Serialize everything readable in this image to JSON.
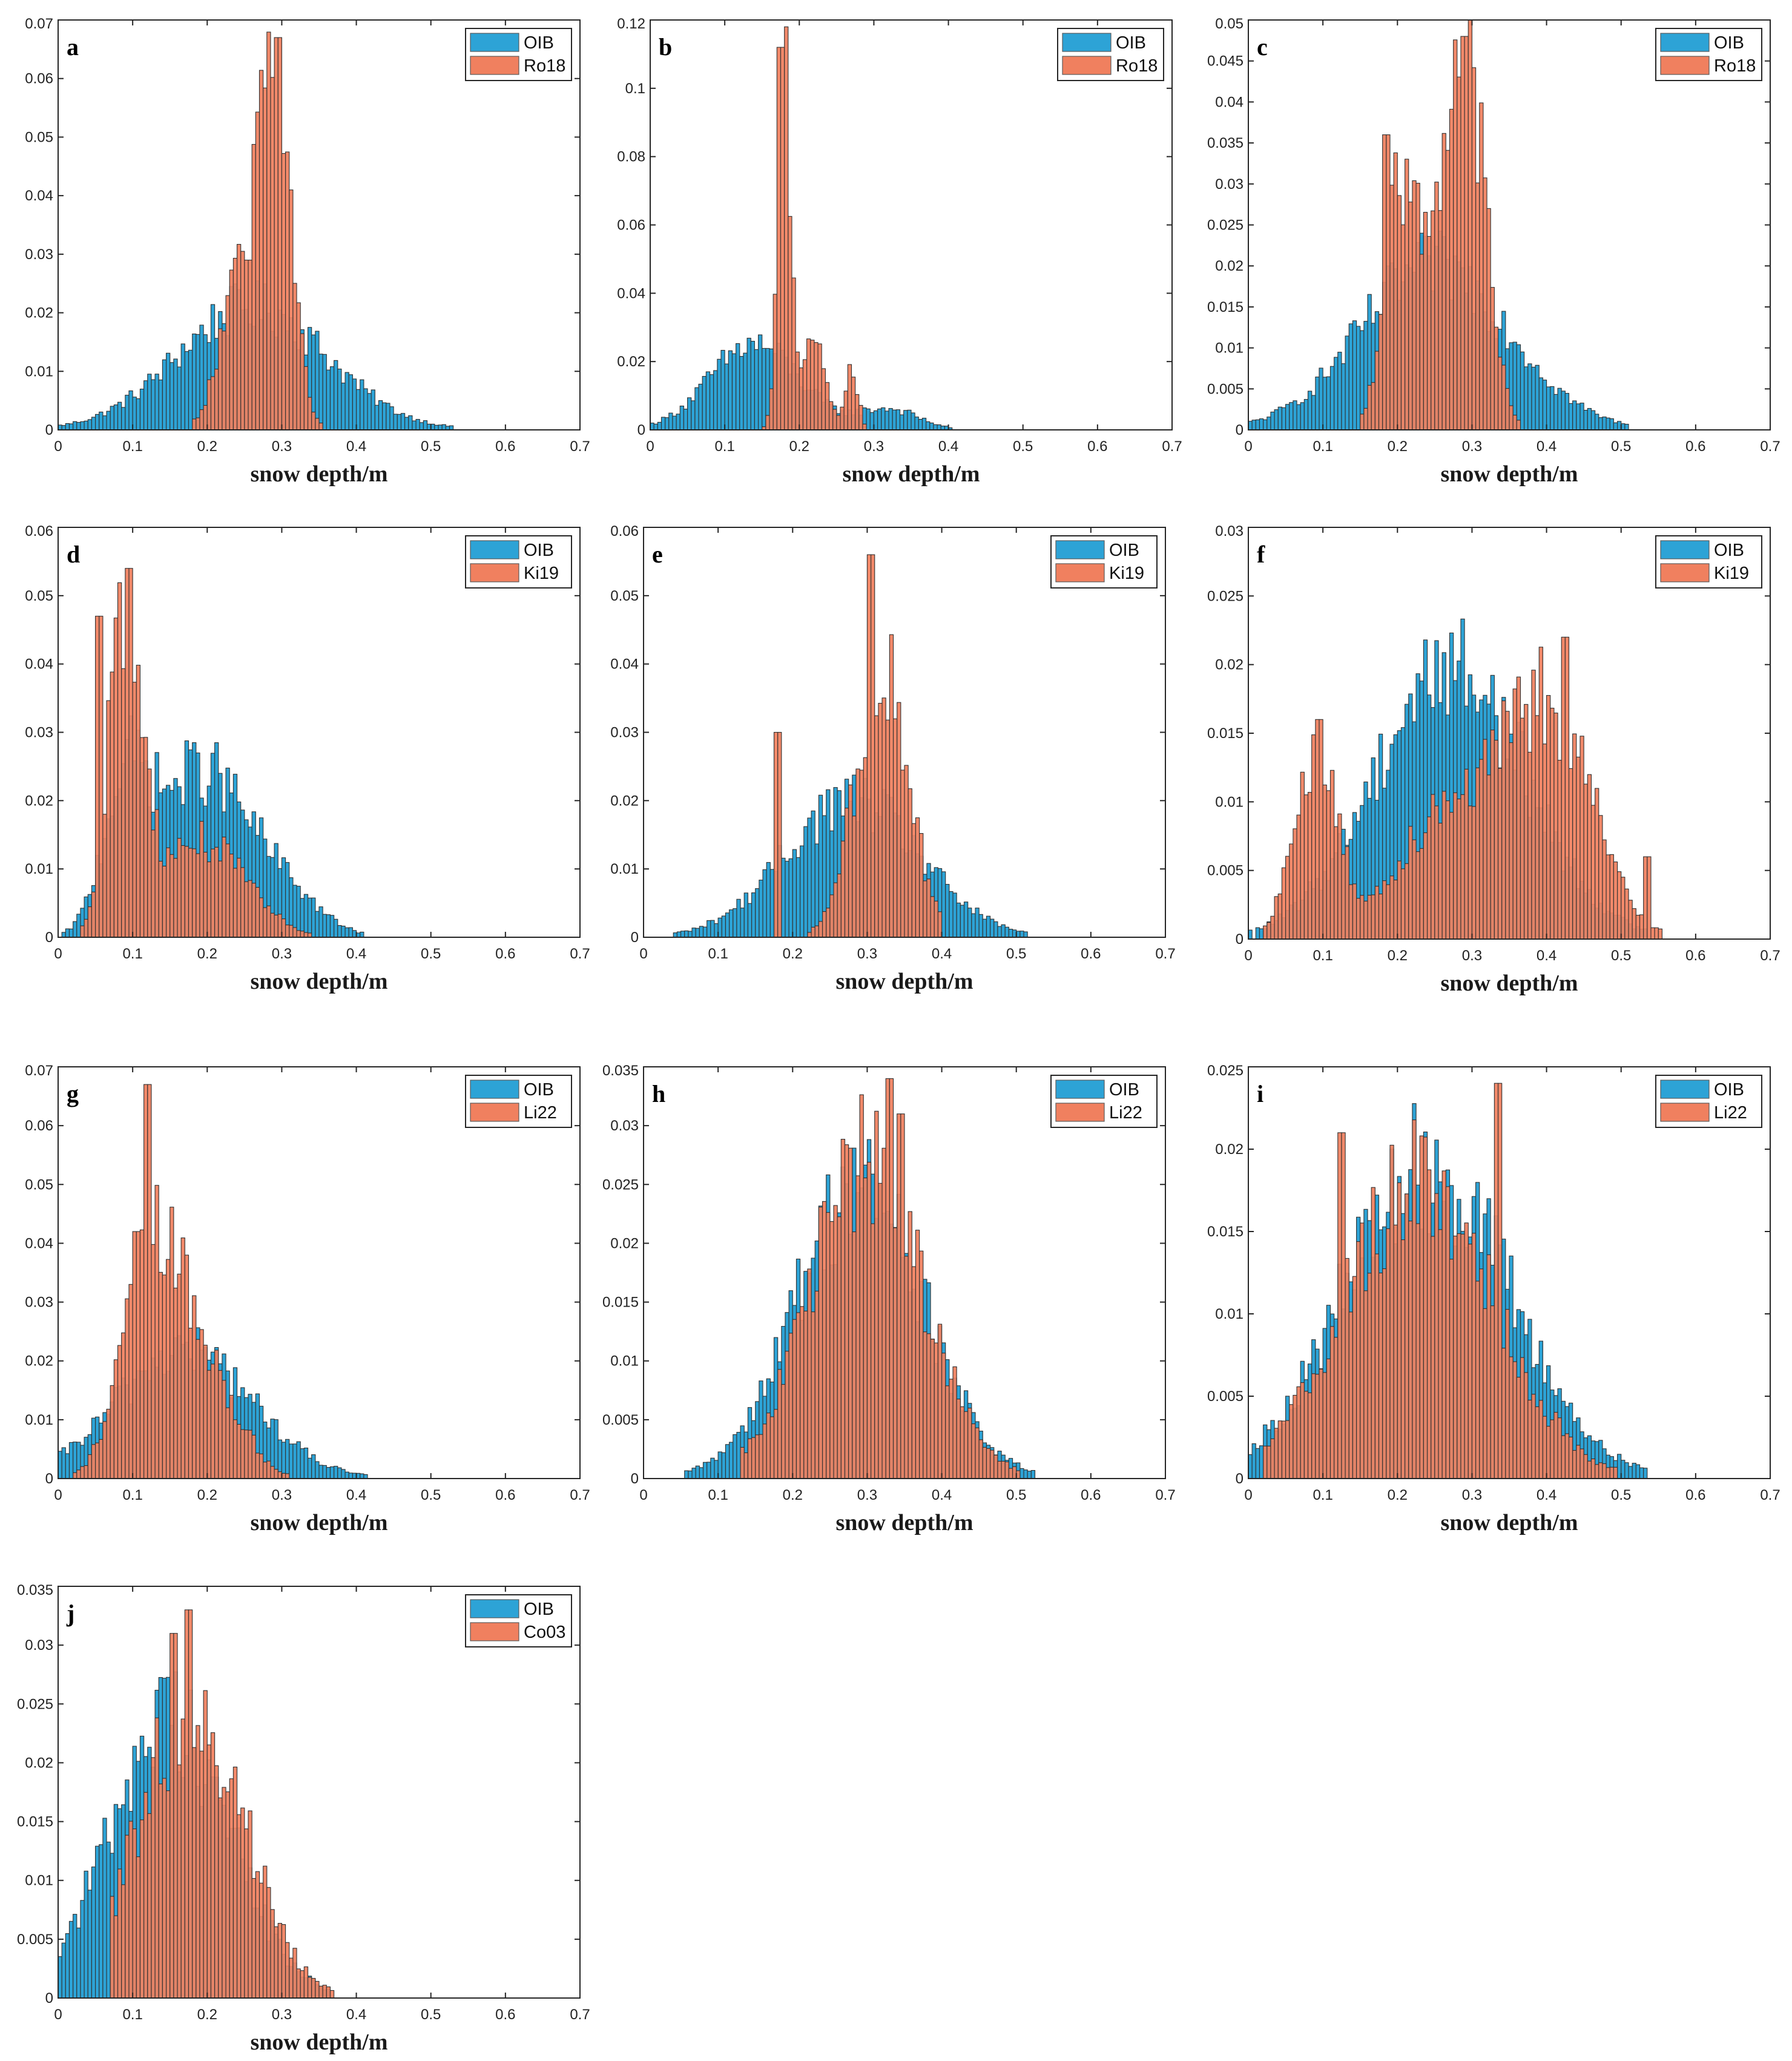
{
  "figure": {
    "colors": {
      "oib": "#2da3d6",
      "model": "#f0805f",
      "edge": "#303030",
      "axis": "#262626"
    },
    "x_label": "snow depth/m"
  },
  "chart_data": [
    {
      "type": "bar",
      "letter": "a",
      "title": "",
      "xlabel": "snow depth/m",
      "ylabel": "",
      "xlim": [
        0,
        0.7
      ],
      "ylim": [
        0,
        0.07
      ],
      "xticks": [
        "0",
        "0.1",
        "0.2",
        "0.3",
        "0.4",
        "0.5",
        "0.6",
        "0.7"
      ],
      "yticks": [
        "0",
        "0.01",
        "0.02",
        "0.03",
        "0.04",
        "0.05",
        "0.06",
        "0.07"
      ],
      "legend": [
        "OIB",
        "Ro18"
      ],
      "legend_position": "top-right",
      "series": [
        {
          "name": "OIB",
          "peaks": [
            [
              0.26,
              0.021,
              0.1
            ]
          ]
        },
        {
          "name": "Ro18",
          "peaks": [
            [
              0.29,
              0.062,
              0.022
            ],
            [
              0.24,
              0.022,
              0.025
            ]
          ],
          "range": [
            0.18,
            0.4
          ],
          "spikes": [
            [
              0.295,
              0.067
            ],
            [
              0.255,
              0.029
            ]
          ]
        }
      ]
    },
    {
      "type": "bar",
      "letter": "b",
      "title": "",
      "xlabel": "snow depth/m",
      "ylabel": "",
      "xlim": [
        0,
        0.7
      ],
      "ylim": [
        0,
        0.12
      ],
      "xticks": [
        "0",
        "0.1",
        "0.2",
        "0.3",
        "0.4",
        "0.5",
        "0.6",
        "0.7"
      ],
      "yticks": [
        "0",
        "0.02",
        "0.04",
        "0.06",
        "0.08",
        "0.1",
        "0.12"
      ],
      "legend": [
        "OIB",
        "Ro18"
      ],
      "legend_position": "top-right",
      "series": [
        {
          "name": "OIB",
          "peaks": [
            [
              0.14,
              0.025,
              0.06
            ],
            [
              0.32,
              0.006,
              0.04
            ]
          ]
        },
        {
          "name": "Ro18",
          "peaks": [
            [
              0.18,
              0.1,
              0.009
            ],
            [
              0.22,
              0.025,
              0.015
            ],
            [
              0.27,
              0.02,
              0.008
            ]
          ],
          "range": [
            0.14,
            0.3
          ],
          "spikes": [
            [
              0.18,
              0.118
            ],
            [
              0.175,
              0.112
            ]
          ]
        }
      ]
    },
    {
      "type": "bar",
      "letter": "c",
      "title": "",
      "xlabel": "snow depth/m",
      "ylabel": "",
      "xlim": [
        0,
        0.7
      ],
      "ylim": [
        0,
        0.05
      ],
      "xticks": [
        "0",
        "0.1",
        "0.2",
        "0.3",
        "0.4",
        "0.5",
        "0.6",
        "0.7"
      ],
      "yticks": [
        "0",
        "0.005",
        "0.01",
        "0.015",
        "0.02",
        "0.025",
        "0.03",
        "0.035",
        "0.04",
        "0.045",
        "0.05"
      ],
      "legend": [
        "OIB",
        "Ro18"
      ],
      "legend_position": "top-right",
      "series": [
        {
          "name": "OIB",
          "peaks": [
            [
              0.25,
              0.02,
              0.1
            ]
          ]
        },
        {
          "name": "Ro18",
          "peaks": [
            [
              0.295,
              0.04,
              0.025
            ],
            [
              0.2,
              0.025,
              0.02
            ],
            [
              0.25,
              0.02,
              0.03
            ]
          ],
          "range": [
            0.15,
            0.37
          ],
          "spikes": [
            [
              0.29,
              0.048
            ],
            [
              0.185,
              0.036
            ]
          ]
        }
      ]
    },
    {
      "type": "bar",
      "letter": "d",
      "title": "",
      "xlabel": "snow depth/m",
      "ylabel": "",
      "xlim": [
        0,
        0.7
      ],
      "ylim": [
        0,
        0.06
      ],
      "xticks": [
        "0",
        "0.1",
        "0.2",
        "0.3",
        "0.4",
        "0.5",
        "0.6",
        "0.7"
      ],
      "yticks": [
        "0",
        "0.01",
        "0.02",
        "0.03",
        "0.04",
        "0.05",
        "0.06"
      ],
      "legend": [
        "OIB",
        "Ki19"
      ],
      "legend_position": "top-right",
      "series": [
        {
          "name": "OIB",
          "peaks": [
            [
              0.19,
              0.024,
              0.06
            ],
            [
              0.09,
              0.02,
              0.03
            ],
            [
              0.3,
              0.006,
              0.05
            ]
          ]
        },
        {
          "name": "Ki19",
          "peaks": [
            [
              0.09,
              0.046,
              0.022
            ],
            [
              0.19,
              0.014,
              0.06
            ]
          ],
          "range": [
            0.03,
            0.36
          ],
          "spikes": [
            [
              0.095,
              0.054
            ],
            [
              0.055,
              0.047
            ]
          ]
        }
      ]
    },
    {
      "type": "bar",
      "letter": "e",
      "title": "",
      "xlabel": "snow depth/m",
      "ylabel": "",
      "xlim": [
        0,
        0.7
      ],
      "ylim": [
        0,
        0.06
      ],
      "xticks": [
        "0",
        "0.1",
        "0.2",
        "0.3",
        "0.4",
        "0.5",
        "0.6",
        "0.7"
      ],
      "yticks": [
        "0",
        "0.01",
        "0.02",
        "0.03",
        "0.04",
        "0.05",
        "0.06"
      ],
      "legend": [
        "OIB",
        "Ki19"
      ],
      "legend_position": "top-right",
      "series": [
        {
          "name": "OIB",
          "peaks": [
            [
              0.28,
              0.02,
              0.09
            ]
          ]
        },
        {
          "name": "Ki19",
          "peaks": [
            [
              0.32,
              0.04,
              0.035
            ]
          ],
          "range": [
            0.19,
            0.4
          ],
          "spikes": [
            [
              0.305,
              0.056
            ],
            [
              0.18,
              0.03
            ]
          ]
        }
      ]
    },
    {
      "type": "bar",
      "letter": "f",
      "title": "",
      "xlabel": "snow depth/m",
      "ylabel": "",
      "xlim": [
        0,
        0.7
      ],
      "ylim": [
        0,
        0.03
      ],
      "xticks": [
        "0",
        "0.1",
        "0.2",
        "0.3",
        "0.4",
        "0.5",
        "0.6",
        "0.7"
      ],
      "yticks": [
        "0",
        "0.005",
        "0.01",
        "0.015",
        "0.02",
        "0.025",
        "0.03"
      ],
      "legend": [
        "OIB",
        "Ki19"
      ],
      "legend_position": "top-right",
      "series": [
        {
          "name": "OIB",
          "peaks": [
            [
              0.27,
              0.02,
              0.1
            ]
          ]
        },
        {
          "name": "Ki19",
          "peaks": [
            [
              0.09,
              0.013,
              0.03
            ],
            [
              0.4,
              0.017,
              0.06
            ],
            [
              0.26,
              0.009,
              0.06
            ]
          ],
          "spikes": [
            [
              0.425,
              0.022
            ],
            [
              0.095,
              0.016
            ],
            [
              0.535,
              0.006
            ]
          ]
        }
      ]
    },
    {
      "type": "bar",
      "letter": "g",
      "title": "",
      "xlabel": "snow depth/m",
      "ylabel": "",
      "xlim": [
        0,
        0.7
      ],
      "ylim": [
        0,
        0.07
      ],
      "xticks": [
        "0",
        "0.1",
        "0.2",
        "0.3",
        "0.4",
        "0.5",
        "0.6",
        "0.7"
      ],
      "yticks": [
        "0",
        "0.01",
        "0.02",
        "0.03",
        "0.04",
        "0.05",
        "0.06",
        "0.07"
      ],
      "legend": [
        "OIB",
        "Li22"
      ],
      "legend_position": "top-right",
      "series": [
        {
          "name": "OIB",
          "peaks": [
            [
              0.17,
              0.022,
              0.09
            ]
          ]
        },
        {
          "name": "Li22",
          "peaks": [
            [
              0.13,
              0.04,
              0.04
            ],
            [
              0.21,
              0.014,
              0.04
            ]
          ],
          "range": [
            0.02,
            0.32
          ],
          "spikes": [
            [
              0.12,
              0.067
            ],
            [
              0.105,
              0.042
            ]
          ]
        }
      ]
    },
    {
      "type": "bar",
      "letter": "h",
      "title": "",
      "xlabel": "snow depth/m",
      "ylabel": "",
      "xlim": [
        0,
        0.7
      ],
      "ylim": [
        0,
        0.035
      ],
      "xticks": [
        "0",
        "0.1",
        "0.2",
        "0.3",
        "0.4",
        "0.5",
        "0.6",
        "0.7"
      ],
      "yticks": [
        "0",
        "0.005",
        "0.01",
        "0.015",
        "0.02",
        "0.025",
        "0.03",
        "0.035"
      ],
      "legend": [
        "OIB",
        "Li22"
      ],
      "legend_position": "top-right",
      "series": [
        {
          "name": "OIB",
          "peaks": [
            [
              0.29,
              0.025,
              0.085
            ]
          ]
        },
        {
          "name": "Li22",
          "peaks": [
            [
              0.3,
              0.027,
              0.075
            ]
          ],
          "range": [
            0.13,
            0.56
          ],
          "spikes": [
            [
              0.33,
              0.034
            ],
            [
              0.345,
              0.031
            ]
          ]
        }
      ]
    },
    {
      "type": "bar",
      "letter": "i",
      "title": "",
      "xlabel": "snow depth/m",
      "ylabel": "",
      "xlim": [
        0,
        0.7
      ],
      "ylim": [
        0,
        0.025
      ],
      "xticks": [
        "0",
        "0.1",
        "0.2",
        "0.3",
        "0.4",
        "0.5",
        "0.6",
        "0.7"
      ],
      "yticks": [
        "0",
        "0.005",
        "0.01",
        "0.015",
        "0.02",
        "0.025"
      ],
      "legend": [
        "OIB",
        "Li22"
      ],
      "legend_position": "top-right",
      "series": [
        {
          "name": "OIB",
          "peaks": [
            [
              0.24,
              0.019,
              0.11
            ]
          ]
        },
        {
          "name": "Li22",
          "peaks": [
            [
              0.23,
              0.018,
              0.1
            ]
          ],
          "range": [
            0.02,
            0.52
          ],
          "spikes": [
            [
              0.335,
              0.024
            ],
            [
              0.125,
              0.021
            ]
          ]
        }
      ]
    },
    {
      "type": "bar",
      "letter": "j",
      "title": "",
      "xlabel": "snow depth/m",
      "ylabel": "",
      "xlim": [
        0,
        0.7
      ],
      "ylim": [
        0,
        0.035
      ],
      "xticks": [
        "0",
        "0.1",
        "0.2",
        "0.3",
        "0.4",
        "0.5",
        "0.6",
        "0.7"
      ],
      "yticks": [
        "0",
        "0.005",
        "0.01",
        "0.015",
        "0.02",
        "0.025",
        "0.03",
        "0.035"
      ],
      "legend": [
        "OIB",
        "Co03"
      ],
      "legend_position": "top-right",
      "series": [
        {
          "name": "OIB",
          "peaks": [
            [
              0.15,
              0.024,
              0.08
            ]
          ]
        },
        {
          "name": "Co03",
          "peaks": [
            [
              0.18,
              0.025,
              0.07
            ]
          ],
          "range": [
            0.07,
            0.4
          ],
          "spikes": [
            [
              0.175,
              0.033
            ],
            [
              0.155,
              0.031
            ]
          ]
        }
      ]
    }
  ]
}
